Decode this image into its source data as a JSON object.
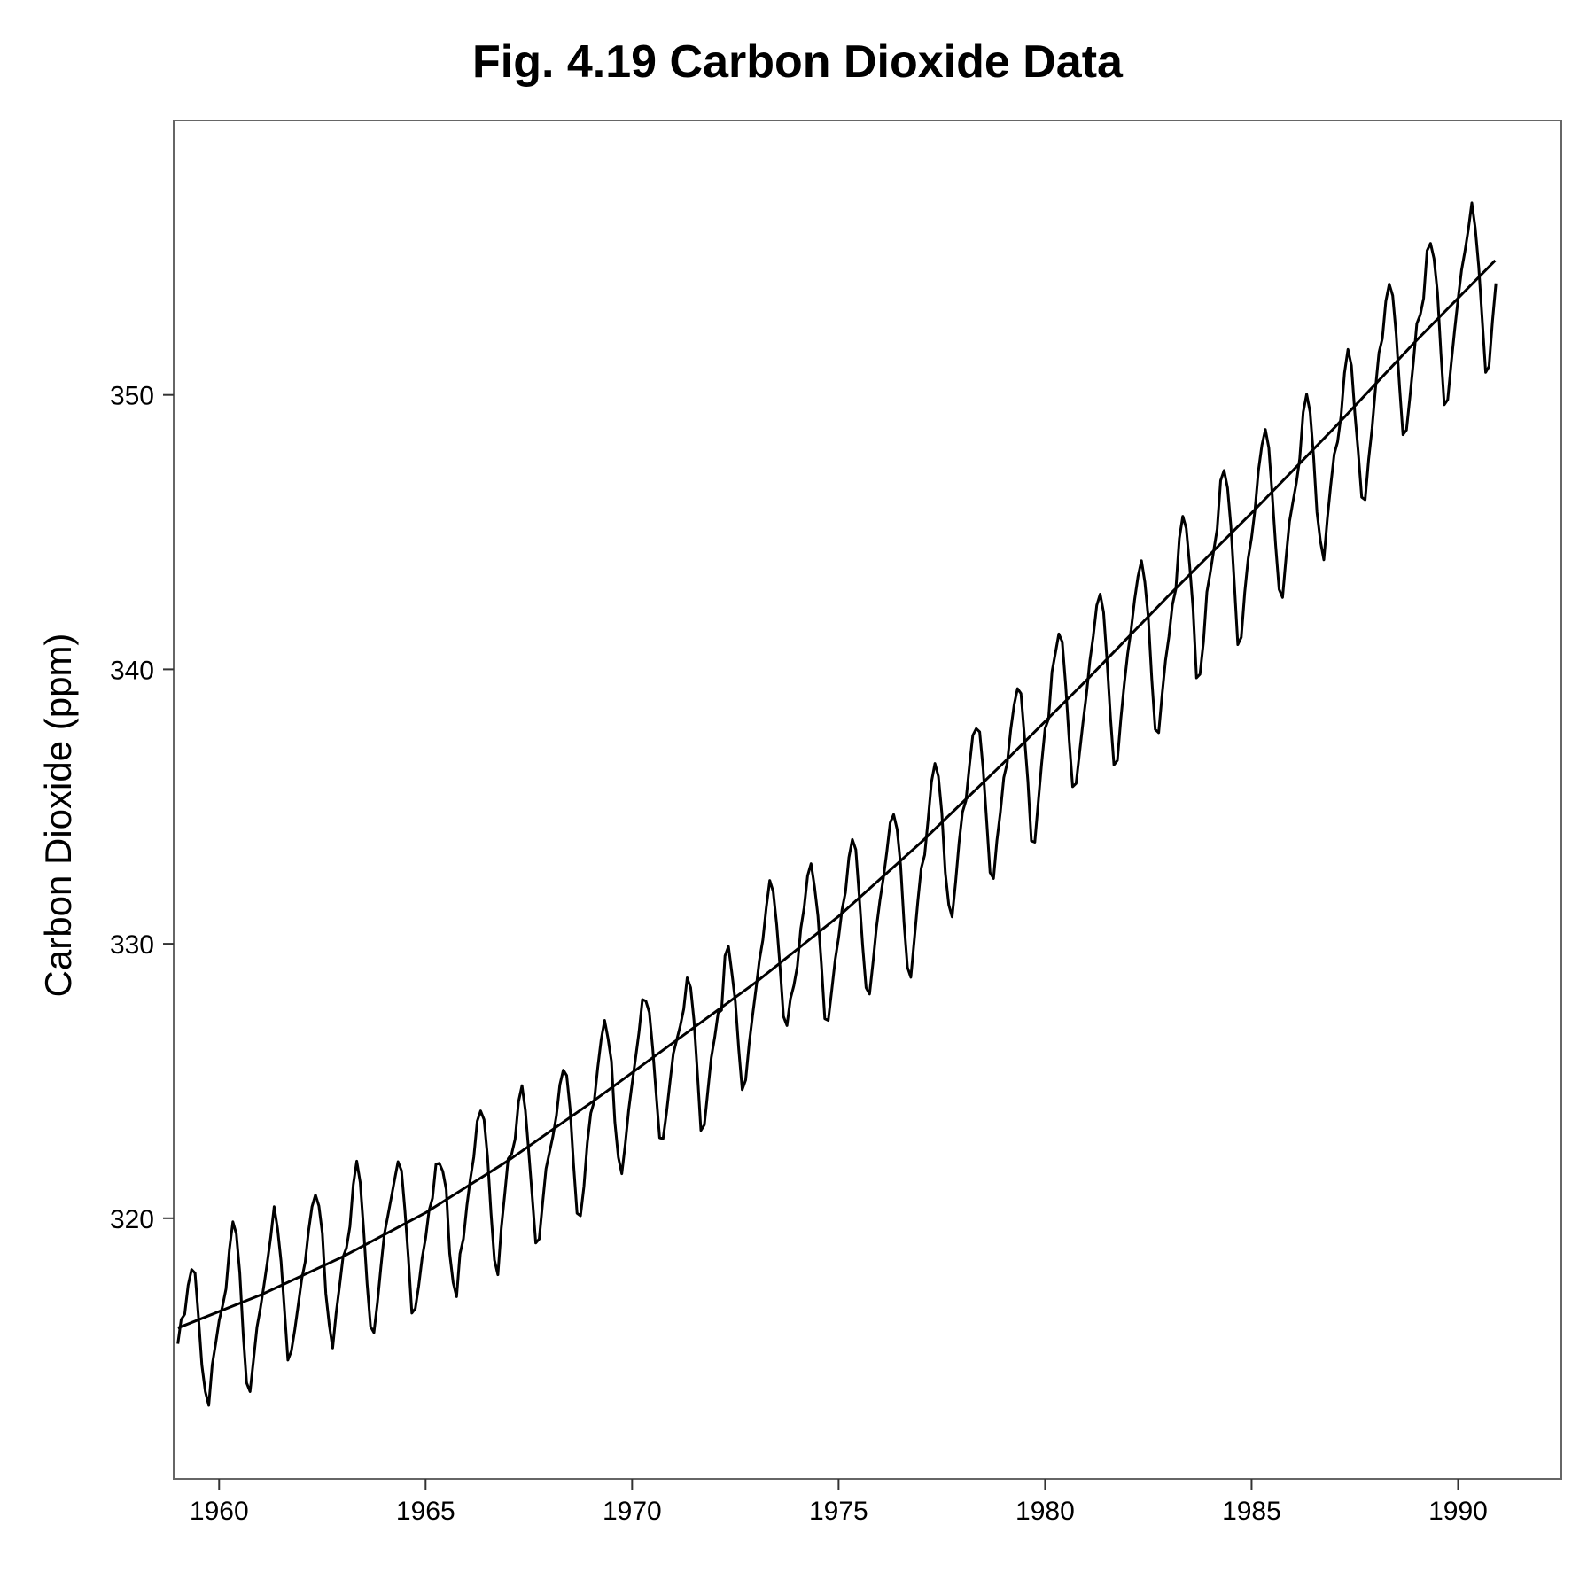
{
  "chart_data": {
    "type": "line",
    "title": "Fig. 4.19 Carbon Dioxide Data",
    "xlabel": "",
    "ylabel": "Carbon Dioxide (ppm)",
    "xlim": [
      1958.9,
      1992.5
    ],
    "ylim": [
      310.5,
      360.0
    ],
    "x_ticks": [
      1960,
      1965,
      1970,
      1975,
      1980,
      1985,
      1990
    ],
    "y_ticks": [
      320,
      330,
      340,
      350
    ],
    "grid": false,
    "legend": "none",
    "series": [
      {
        "x_start": 1959.0,
        "x_step": 0.0833333,
        "values": [
          315.42,
          316.31,
          316.5,
          317.56,
          318.13,
          318.0,
          316.39,
          314.65,
          313.68,
          313.18,
          314.66,
          315.43,
          316.27,
          316.81,
          317.42,
          318.87,
          319.87,
          319.43,
          318.01,
          315.74,
          314.0,
          313.68,
          314.84,
          316.03,
          316.73,
          317.54,
          318.38,
          319.31,
          320.42,
          319.61,
          318.42,
          316.63,
          314.83,
          315.16,
          315.94,
          316.85,
          317.78,
          318.4,
          319.53,
          320.42,
          320.85,
          320.45,
          319.45,
          317.25,
          316.11,
          315.27,
          316.53,
          317.53,
          318.58,
          318.92,
          319.7,
          321.22,
          322.08,
          321.31,
          319.58,
          317.61,
          316.05,
          315.83,
          316.91,
          318.2,
          319.41,
          320.07,
          320.74,
          321.4,
          322.06,
          321.73,
          320.27,
          318.54,
          316.54,
          316.71,
          317.53,
          318.55,
          319.27,
          320.28,
          320.73,
          321.97,
          322.0,
          321.71,
          321.05,
          318.71,
          317.66,
          317.14,
          318.7,
          319.25,
          320.46,
          321.43,
          322.23,
          323.54,
          323.91,
          323.59,
          322.24,
          320.2,
          318.48,
          317.94,
          319.63,
          320.87,
          322.17,
          322.34,
          322.88,
          324.25,
          324.83,
          323.93,
          322.38,
          320.76,
          319.1,
          319.24,
          320.56,
          321.8,
          322.4,
          322.99,
          323.73,
          324.86,
          325.4,
          325.2,
          323.98,
          321.95,
          320.18,
          320.09,
          321.16,
          322.74,
          323.83,
          324.26,
          325.47,
          326.5,
          327.21,
          326.54,
          325.72,
          323.5,
          322.22,
          321.62,
          322.69,
          323.95,
          324.89,
          325.82,
          326.77,
          327.97,
          327.91,
          327.5,
          326.18,
          324.53,
          322.93,
          322.9,
          323.85,
          324.96,
          326.01,
          326.51,
          327.01,
          327.62,
          328.76,
          328.4,
          327.2,
          325.27,
          323.2,
          323.4,
          324.63,
          325.85,
          326.6,
          327.47,
          327.58,
          329.56,
          329.9,
          328.92,
          327.88,
          326.16,
          324.68,
          325.04,
          326.34,
          327.39,
          328.37,
          329.4,
          330.14,
          331.33,
          332.31,
          331.9,
          330.7,
          329.15,
          327.35,
          327.02,
          327.99,
          328.48,
          329.18,
          330.55,
          331.32,
          332.48,
          332.92,
          332.08,
          331.01,
          329.23,
          327.27,
          327.21,
          328.29,
          329.41,
          330.23,
          331.25,
          331.87,
          333.14,
          333.8,
          333.43,
          331.73,
          329.9,
          328.4,
          328.17,
          329.32,
          330.59,
          331.58,
          332.39,
          333.33,
          334.41,
          334.71,
          334.17,
          332.89,
          330.77,
          329.14,
          328.78,
          330.14,
          331.52,
          332.75,
          333.24,
          334.53,
          335.9,
          336.57,
          336.1,
          334.76,
          332.59,
          331.42,
          330.98,
          332.24,
          333.68,
          334.8,
          335.22,
          336.47,
          337.59,
          337.84,
          337.72,
          336.37,
          334.51,
          332.6,
          332.38,
          333.75,
          334.78,
          336.05,
          336.59,
          337.79,
          338.71,
          339.3,
          339.12,
          337.56,
          335.92,
          333.75,
          333.7,
          335.12,
          336.56,
          337.84,
          338.19,
          339.91,
          340.6,
          341.29,
          341.0,
          339.39,
          337.43,
          335.72,
          335.84,
          336.93,
          338.04,
          339.06,
          340.3,
          341.21,
          342.33,
          342.74,
          342.08,
          340.32,
          338.26,
          336.52,
          336.68,
          338.19,
          339.44,
          340.57,
          341.44,
          342.53,
          343.39,
          343.96,
          343.18,
          341.88,
          339.65,
          337.81,
          337.69,
          339.09,
          340.32,
          341.2,
          342.35,
          342.93,
          344.77,
          345.58,
          345.14,
          343.81,
          342.21,
          339.69,
          339.82,
          340.98,
          342.82,
          343.52,
          344.33,
          345.11,
          346.88,
          347.25,
          346.62,
          345.22,
          343.11,
          340.9,
          341.17,
          342.8,
          344.04,
          344.79,
          345.82,
          347.25,
          348.17,
          348.74,
          348.07,
          346.38,
          344.51,
          342.92,
          342.62,
          344.06,
          345.38,
          346.11,
          346.78,
          347.68,
          349.37,
          350.03,
          349.37,
          347.76,
          345.73,
          344.68,
          343.99,
          345.48,
          346.72,
          347.84,
          348.29,
          349.23,
          350.8,
          351.66,
          351.07,
          349.33,
          347.92,
          346.27,
          346.18,
          347.64,
          348.78,
          350.25,
          351.54,
          352.05,
          353.41,
          354.04,
          353.62,
          352.22,
          350.27,
          348.55,
          348.72,
          349.91,
          351.18,
          352.6,
          352.92,
          353.53,
          355.26,
          355.52,
          354.97,
          353.75,
          351.52,
          349.64,
          349.83,
          351.14,
          352.37,
          353.5,
          354.55,
          355.23,
          356.04,
          357.0,
          356.07,
          354.67,
          352.76,
          350.82,
          351.04,
          352.69,
          354.07
        ]
      },
      {
        "type": "trend",
        "x": [
          1959.0,
          1961.0,
          1963.0,
          1965.0,
          1967.0,
          1969.0,
          1971.0,
          1973.0,
          1975.0,
          1977.0,
          1979.0,
          1981.0,
          1983.0,
          1985.0,
          1987.0,
          1989.0,
          1990.9
        ],
        "values": [
          316.0,
          317.2,
          318.6,
          320.2,
          322.1,
          324.2,
          326.4,
          328.6,
          331.0,
          333.7,
          336.6,
          339.6,
          342.7,
          345.7,
          348.8,
          352.0,
          354.9
        ]
      }
    ]
  }
}
